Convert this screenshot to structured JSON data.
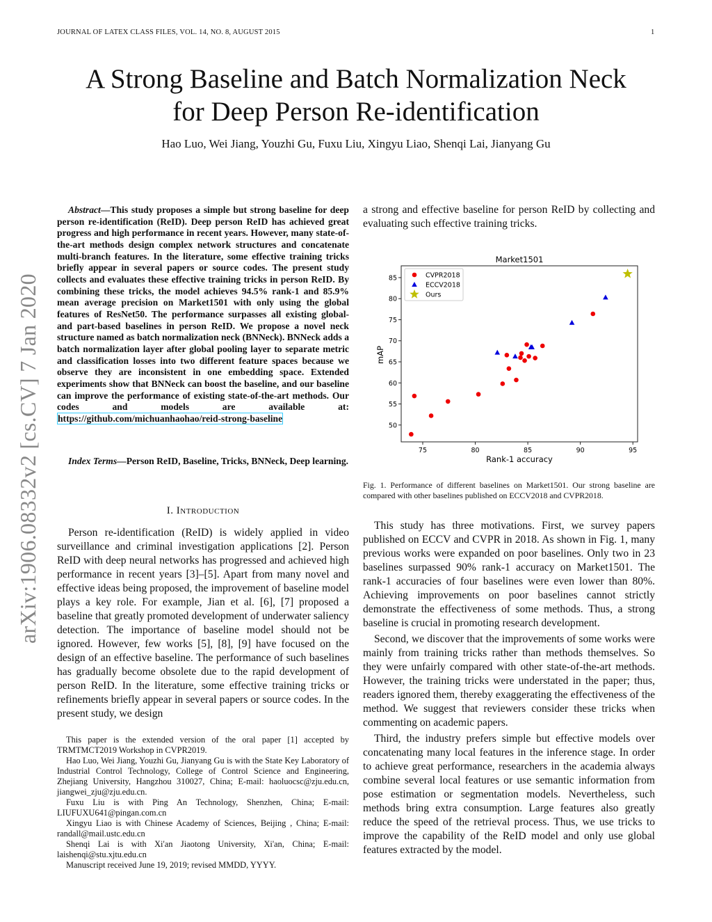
{
  "header": {
    "journal": "JOURNAL OF LATEX CLASS FILES, VOL. 14, NO. 8, AUGUST 2015",
    "page_number": "1"
  },
  "watermark": "arXiv:1906.08332v2  [cs.CV]  7 Jan 2020",
  "title_line1": "A Strong Baseline and Batch Normalization Neck",
  "title_line2": "for Deep Person Re-identification",
  "authors": "Hao Luo, Wei Jiang, Youzhi Gu, Fuxu Liu, Xingyu Liao, Shenqi Lai, Jianyang Gu",
  "abstract": {
    "label": "Abstract",
    "text": "—This study proposes a simple but strong baseline for deep person re-identification (ReID). Deep person ReID has achieved great progress and high performance in recent years. However, many state-of-the-art methods design complex network structures and concatenate multi-branch features. In the literature, some effective training tricks briefly appear in several papers or source codes. The present study collects and evaluates these effective training tricks in person ReID. By combining these tricks, the model achieves 94.5% rank-1 and 85.9% mean average precision on Market1501 with only using the global features of ResNet50. The performance surpasses all existing global- and part-based baselines in person ReID. We propose a novel neck structure named as batch normalization neck (BNNeck). BNNeck adds a batch normalization layer after global pooling layer to separate metric and classification losses into two different feature spaces because we observe they are inconsistent in one embedding space. Extended experiments show that BNNeck can boost the baseline, and our baseline can improve the performance of existing state-of-the-art methods. Our codes and models are available at: ",
    "link": "https://github.com/michuanhaohao/reid-strong-baseline"
  },
  "index_terms": {
    "label": "Index Terms",
    "text": "—Person ReID, Baseline, Tricks, BNNeck, Deep learning."
  },
  "section_heading": "I. Introduction",
  "intro_left": "Person re-identification (ReID) is widely applied in video surveillance and criminal investigation applications [2]. Person ReID with deep neural networks has progressed and achieved high performance in recent years [3]–[5]. Apart from many novel and effective ideas being proposed, the improvement of baseline model plays a key role. For example, Jian et al. [6], [7] proposed a baseline that greatly promoted development of underwater saliency detection. The importance of baseline model should not be ignored. However, few works [5], [8], [9] have focused on the design of an effective baseline. The performance of such baselines has gradually become obsolete due to the rapid development of person ReID. In the literature, some effective training tricks or refinements briefly appear in several papers or source codes. In the present study, we design",
  "footnotes": [
    "This paper is the extended version of the oral paper [1] accepted by TRMTMCT2019 Workshop in CVPR2019.",
    "Hao Luo, Wei Jiang, Youzhi Gu, Jianyang Gu is with the State Key Laboratory of Industrial Control Technology, College of Control Science and Engineering, Zhejiang University, Hangzhou 310027, China; E-mail: haoluocsc@zju.edu.cn, jiangwei_zju@zju.edu.cn.",
    "Fuxu Liu is with Ping An Technology, Shenzhen, China; E-mail: LIUFUXU641@pingan.com.cn",
    "Xingyu Liao is with Chinese Academy of Sciences, Beijing , China; E-mail: randall@mail.ustc.edu.cn",
    "Shenqi Lai is with Xi'an Jiaotong University, Xi'an, China; E-mail: laishenqi@stu.xjtu.edu.cn",
    "Manuscript received June 19, 2019; revised MMDD, YYYY."
  ],
  "right_intro": "a strong and effective baseline for person ReID by collecting and evaluating such effective training tricks.",
  "caption": "Fig. 1.  Performance of different baselines on Market1501. Our strong baseline are compared with other baselines published on ECCV2018 and CVPR2018.",
  "right_paragraphs": [
    "This study has three motivations. First, we survey papers published on ECCV and CVPR in 2018. As shown in Fig. 1, many previous works were expanded on poor baselines. Only two in 23 baselines surpassed 90% rank-1 accuracy on Market1501. The rank-1 accuracies of four baselines were even lower than 80%. Achieving improvements on poor baselines cannot strictly demonstrate the effectiveness of some methods. Thus, a strong baseline is crucial in promoting research development.",
    "Second, we discover that the improvements of some works were mainly from training tricks rather than methods themselves. So they were unfairly compared with other state-of-the-art methods. However, the training tricks were understated in the paper; thus, readers ignored them, thereby exaggerating the effectiveness of the method. We suggest that reviewers consider these tricks when commenting on academic papers.",
    "Third, the industry prefers simple but effective models over concatenating many local features in the inference stage. In order to achieve great performance, researchers in the academia always combine several local features or use semantic information from pose estimation or segmentation models. Nevertheless, such methods bring extra consumption. Large features also greatly reduce the speed of the retrieval process. Thus, we use tricks to improve the capability of the ReID model and only use global features extracted by the model."
  ],
  "chart_data": {
    "type": "scatter",
    "title": "Market1501",
    "xlabel": "Rank-1 accuracy",
    "ylabel": "mAP",
    "xlim": [
      72.95,
      95.45
    ],
    "ylim": [
      46.0,
      87.8
    ],
    "xticks": [
      75,
      80,
      85,
      90,
      95
    ],
    "yticks": [
      50,
      55,
      60,
      65,
      70,
      75,
      80,
      85
    ],
    "legend_position": "top-left",
    "grid": false,
    "series": [
      {
        "name": "CVPR2018",
        "marker": "circle",
        "color": "#ee0000",
        "points": [
          [
            73.9,
            47.8
          ],
          [
            74.2,
            56.9
          ],
          [
            75.8,
            52.2
          ],
          [
            77.4,
            55.6
          ],
          [
            80.3,
            57.3
          ],
          [
            82.6,
            59.8
          ],
          [
            83.0,
            66.6
          ],
          [
            83.2,
            63.4
          ],
          [
            83.9,
            60.7
          ],
          [
            84.3,
            66.0
          ],
          [
            84.4,
            67.0
          ],
          [
            84.7,
            65.3
          ],
          [
            84.9,
            69.1
          ],
          [
            85.1,
            66.3
          ],
          [
            85.7,
            65.9
          ],
          [
            86.4,
            68.8
          ],
          [
            91.2,
            76.4
          ]
        ]
      },
      {
        "name": "ECCV2018",
        "marker": "triangle",
        "color": "#0000dd",
        "points": [
          [
            82.1,
            67.2
          ],
          [
            83.8,
            66.3
          ],
          [
            85.3,
            68.5
          ],
          [
            85.4,
            68.5
          ],
          [
            89.2,
            74.3
          ],
          [
            92.4,
            80.3
          ]
        ]
      },
      {
        "name": "Ours",
        "marker": "star",
        "color": "#bfbf00",
        "points": [
          [
            94.5,
            85.9
          ]
        ]
      }
    ]
  }
}
